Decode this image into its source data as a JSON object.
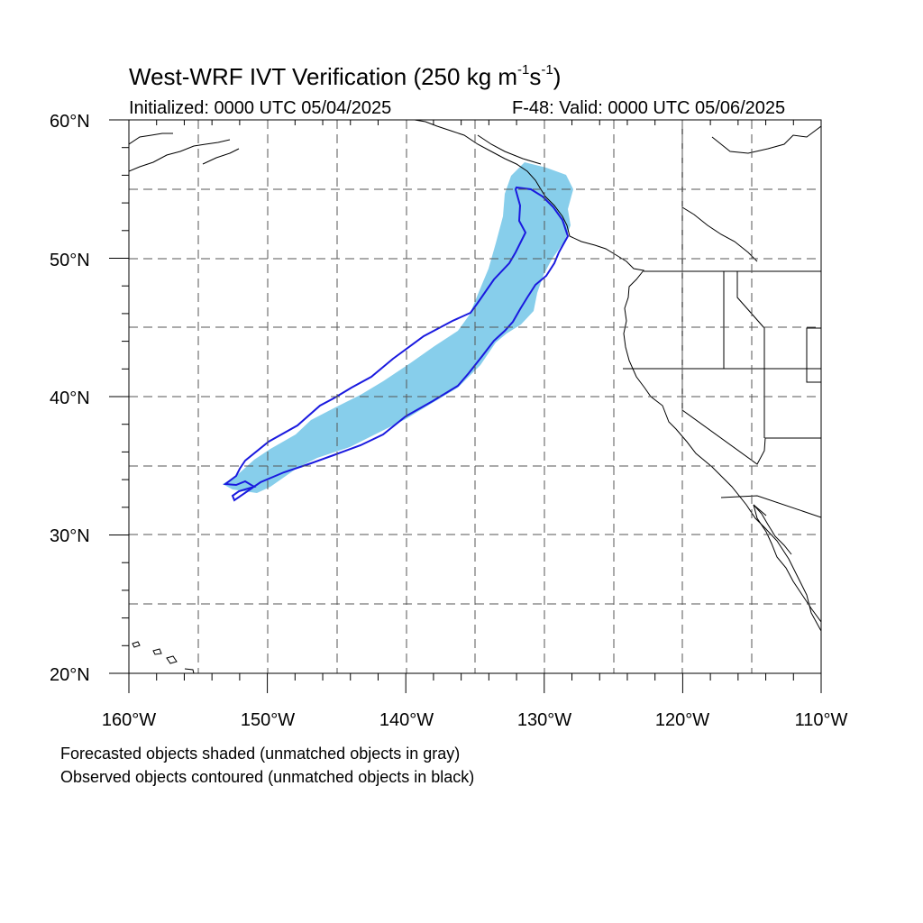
{
  "title": {
    "main": "West-WRF IVT Verification (250 kg m",
    "exp1": "-1",
    "mid": "s",
    "exp2": "-1",
    "close": ")"
  },
  "init_label": "Initialized: 0000 UTC 05/04/2025",
  "valid_label": "F-48: Valid: 0000 UTC 05/06/2025",
  "lat_labels": [
    "60°N",
    "50°N",
    "40°N",
    "30°N",
    "20°N"
  ],
  "lon_labels": [
    "160°W",
    "150°W",
    "140°W",
    "130°W",
    "120°W",
    "110°W"
  ],
  "footnotes": [
    "Forecasted objects shaded (unmatched objects in gray)",
    "Observed objects contoured (unmatched objects in black)"
  ],
  "map": {
    "extent": {
      "lon_min": -160,
      "lon_max": -110,
      "lat_min": 20,
      "lat_max": 60
    },
    "grid_spacing_deg": 5,
    "forecast_fill_color": "#87ceeb",
    "observed_contour_color": "#1a1adf"
  }
}
